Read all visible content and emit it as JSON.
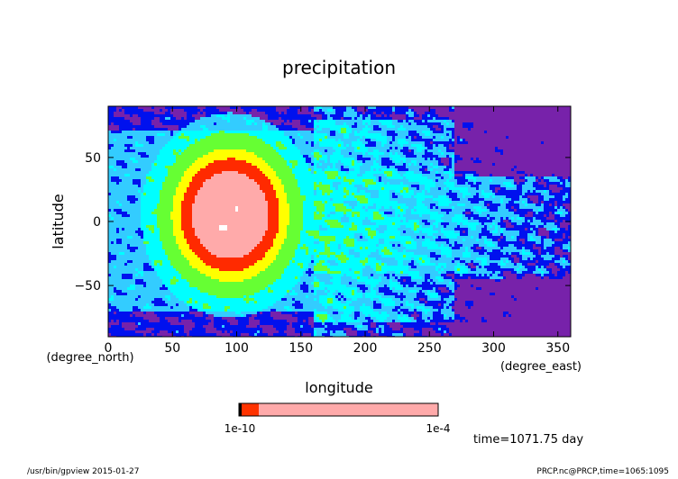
{
  "chart_data": {
    "type": "heatmap",
    "title": "precipitation",
    "xlabel": "longitude",
    "xunit": "(degree_east)",
    "ylabel": "latitude",
    "yunit": "(degree_north)",
    "xlim": [
      0,
      360
    ],
    "ylim": [
      -90,
      90
    ],
    "xticks": [
      0,
      50,
      100,
      150,
      200,
      250,
      300,
      350
    ],
    "yticks": [
      -50,
      0,
      50
    ],
    "xtick_labels": [
      "0",
      "50",
      "100",
      "150",
      "200",
      "250",
      "300",
      "350"
    ],
    "ytick_labels": [
      "−50",
      "0",
      "50"
    ],
    "colorbar": {
      "left_label": "1e-10",
      "right_label": "1e-4",
      "colors": [
        "#000000",
        "#ff3300",
        "#ffaaaa"
      ]
    },
    "palette": {
      "white": "#ffffff",
      "pink": "#ffaaaa",
      "red": "#ff2a00",
      "yellow": "#ffff00",
      "green": "#66ff33",
      "cyan": "#00ffff",
      "lightblue": "#33ccff",
      "blue": "#0011ee",
      "purple": "#7722aa"
    },
    "annotation": "time=1071.75 day"
  },
  "footer": {
    "left": "/usr/bin/gpview  2015-01-27",
    "right": "PRCP.nc@PRCP,time=1065:1095"
  }
}
